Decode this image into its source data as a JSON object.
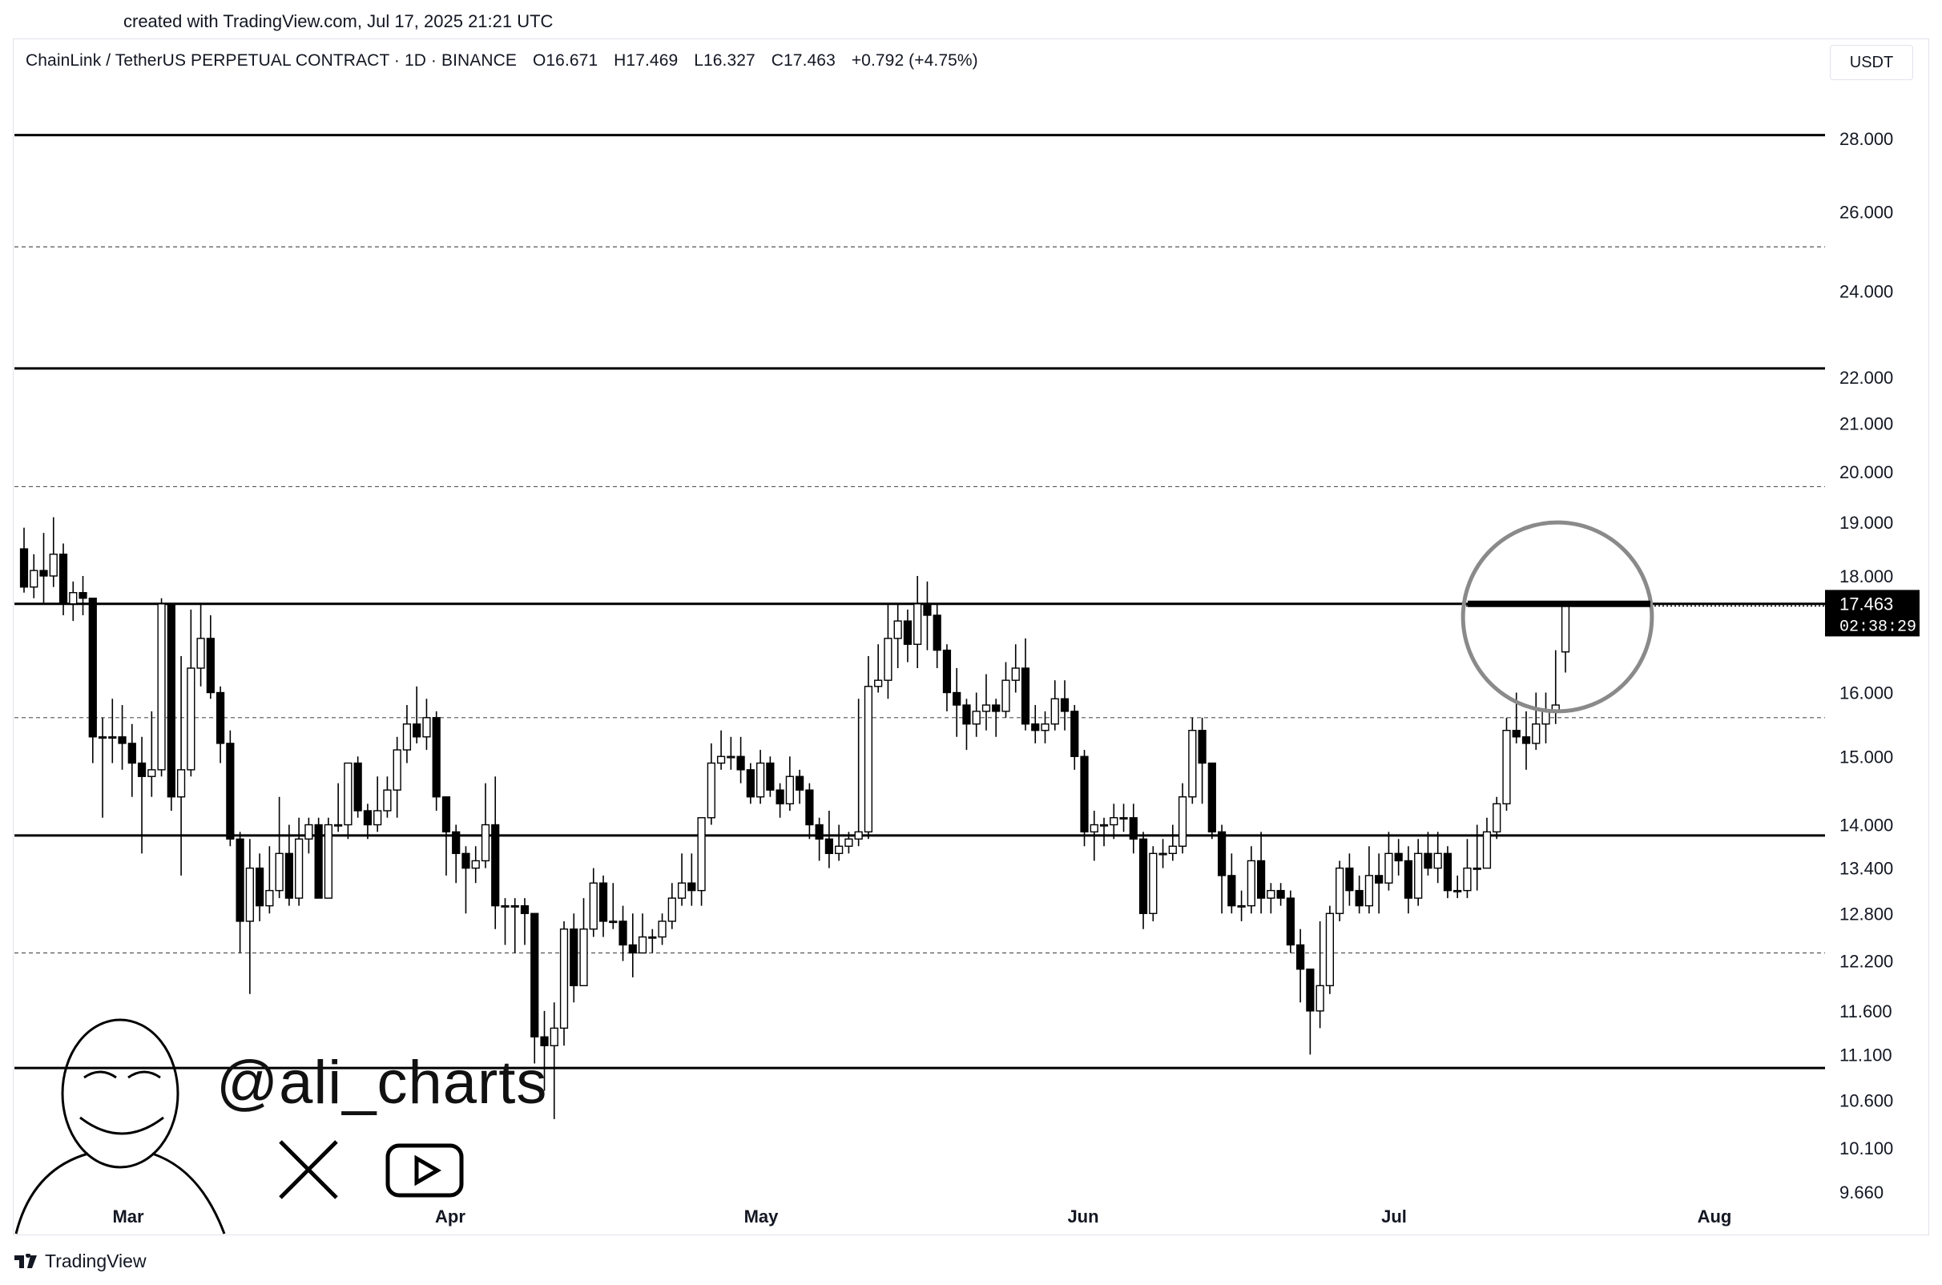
{
  "header": {
    "created": "created with TradingView.com, Jul 17, 2025 21:21 UTC"
  },
  "legend": {
    "symbol": "ChainLink / TetherUS PERPETUAL CONTRACT · 1D · BINANCE",
    "open": "O16.671",
    "high": "H17.469",
    "low": "L16.327",
    "close": "C17.463",
    "change": "+0.792 (+4.75%)"
  },
  "currency_button": "USDT",
  "price_tag": {
    "price": "17.463",
    "countdown": "02:38:29"
  },
  "watermark": {
    "handle": "@ali_charts"
  },
  "footer": {
    "brand": "TradingView"
  },
  "colors": {
    "bull": "#ffffff",
    "bear": "#000000",
    "line": "#000000",
    "circle": "#8a8a8a"
  },
  "chart_data": {
    "type": "candlestick",
    "y_ticks": [
      28.0,
      26.0,
      24.0,
      22.0,
      21.0,
      20.0,
      19.0,
      18.0,
      16.0,
      15.0,
      14.0,
      13.4,
      12.8,
      12.2,
      11.6,
      11.1,
      10.6,
      10.1,
      9.66
    ],
    "y_tick_labels": [
      "28.000",
      "26.000",
      "24.000",
      "22.000",
      "21.000",
      "20.000",
      "19.000",
      "18.000",
      "16.000",
      "15.000",
      "14.000",
      "13.400",
      "12.800",
      "12.200",
      "11.600",
      "11.100",
      "10.600",
      "10.100",
      "9.660"
    ],
    "x_labels": [
      "Mar",
      "Apr",
      "May",
      "Jun",
      "Jul",
      "Aug"
    ],
    "scale": "log",
    "horizontal_lines": [
      {
        "price": 28.1,
        "style": "solid"
      },
      {
        "price": 25.1,
        "style": "dashed"
      },
      {
        "price": 22.2,
        "style": "solid"
      },
      {
        "price": 19.7,
        "style": "dashed"
      },
      {
        "price": 17.5,
        "style": "solid"
      },
      {
        "price": 15.6,
        "style": "dashed"
      },
      {
        "price": 13.85,
        "style": "solid"
      },
      {
        "price": 12.3,
        "style": "dashed"
      },
      {
        "price": 10.95,
        "style": "solid"
      }
    ],
    "highlight": {
      "price_high": 19.0,
      "price_low": 15.7,
      "note": "circle around last candle"
    },
    "candles": [
      [
        18.5,
        17.8,
        18.9,
        17.7
      ],
      [
        17.8,
        18.1,
        18.4,
        17.6
      ],
      [
        18.1,
        18.0,
        18.8,
        17.5
      ],
      [
        18.0,
        18.4,
        19.1,
        17.8
      ],
      [
        18.4,
        17.5,
        18.6,
        17.3
      ],
      [
        17.5,
        17.7,
        17.9,
        17.2
      ],
      [
        17.7,
        17.6,
        18.0,
        17.3
      ],
      [
        17.6,
        15.3,
        17.6,
        14.9
      ],
      [
        15.3,
        15.3,
        15.6,
        14.1
      ],
      [
        15.3,
        15.3,
        15.9,
        14.9
      ],
      [
        15.3,
        15.2,
        15.8,
        14.8
      ],
      [
        15.2,
        14.9,
        15.5,
        14.4
      ],
      [
        14.9,
        14.7,
        15.3,
        13.6
      ],
      [
        14.7,
        14.8,
        15.7,
        14.4
      ],
      [
        14.8,
        17.5,
        17.6,
        14.7
      ],
      [
        17.5,
        14.4,
        17.5,
        14.2
      ],
      [
        14.4,
        14.8,
        16.6,
        13.3
      ],
      [
        14.8,
        16.4,
        17.4,
        14.7
      ],
      [
        16.4,
        16.9,
        17.5,
        16.1
      ],
      [
        16.9,
        16.0,
        17.3,
        15.9
      ],
      [
        16.0,
        15.2,
        16.1,
        14.9
      ],
      [
        15.2,
        13.8,
        15.4,
        13.7
      ],
      [
        13.8,
        12.7,
        13.9,
        12.3
      ],
      [
        12.7,
        13.4,
        13.8,
        11.8
      ],
      [
        13.4,
        12.9,
        13.6,
        12.7
      ],
      [
        12.9,
        13.1,
        13.7,
        12.8
      ],
      [
        13.1,
        13.6,
        14.4,
        13.0
      ],
      [
        13.6,
        13.0,
        14.0,
        12.9
      ],
      [
        13.0,
        13.8,
        14.1,
        12.9
      ],
      [
        13.8,
        14.0,
        14.1,
        13.6
      ],
      [
        14.0,
        13.0,
        14.1,
        13.0
      ],
      [
        13.0,
        14.0,
        14.1,
        13.0
      ],
      [
        14.0,
        14.0,
        14.6,
        13.9
      ],
      [
        14.0,
        14.9,
        14.9,
        13.8
      ],
      [
        14.9,
        14.2,
        15.0,
        14.1
      ],
      [
        14.2,
        14.0,
        14.3,
        13.8
      ],
      [
        14.0,
        14.2,
        14.7,
        13.9
      ],
      [
        14.2,
        14.5,
        14.7,
        14.1
      ],
      [
        14.5,
        15.1,
        15.3,
        14.1
      ],
      [
        15.1,
        15.5,
        15.8,
        14.9
      ],
      [
        15.5,
        15.3,
        16.1,
        15.2
      ],
      [
        15.3,
        15.6,
        15.9,
        15.1
      ],
      [
        15.6,
        14.4,
        15.7,
        14.2
      ],
      [
        14.4,
        13.9,
        14.4,
        13.3
      ],
      [
        13.9,
        13.6,
        14.0,
        13.2
      ],
      [
        13.6,
        13.4,
        13.7,
        12.8
      ],
      [
        13.4,
        13.5,
        13.7,
        13.2
      ],
      [
        13.5,
        14.0,
        14.6,
        13.4
      ],
      [
        14.0,
        12.9,
        14.7,
        12.6
      ],
      [
        12.9,
        12.9,
        13.0,
        12.4
      ],
      [
        12.9,
        12.9,
        13.0,
        12.3
      ],
      [
        12.9,
        12.8,
        13.0,
        12.4
      ],
      [
        12.8,
        11.3,
        12.8,
        11.0
      ],
      [
        11.3,
        11.2,
        11.6,
        10.7
      ],
      [
        11.2,
        11.4,
        11.7,
        10.4
      ],
      [
        11.4,
        12.6,
        12.7,
        11.2
      ],
      [
        12.6,
        11.9,
        12.8,
        11.7
      ],
      [
        11.9,
        12.6,
        13.0,
        11.9
      ],
      [
        12.6,
        13.2,
        13.4,
        12.5
      ],
      [
        13.2,
        12.7,
        13.3,
        12.5
      ],
      [
        12.7,
        12.7,
        13.2,
        12.6
      ],
      [
        12.7,
        12.4,
        12.9,
        12.2
      ],
      [
        12.4,
        12.3,
        12.8,
        12.0
      ],
      [
        12.3,
        12.5,
        12.8,
        12.3
      ],
      [
        12.5,
        12.5,
        12.6,
        12.3
      ],
      [
        12.5,
        12.7,
        12.8,
        12.4
      ],
      [
        12.7,
        13.0,
        13.2,
        12.6
      ],
      [
        13.0,
        13.2,
        13.6,
        12.9
      ],
      [
        13.2,
        13.1,
        13.6,
        12.9
      ],
      [
        13.1,
        14.1,
        14.1,
        12.9
      ],
      [
        14.1,
        14.9,
        15.2,
        14.0
      ],
      [
        14.9,
        15.0,
        15.4,
        14.8
      ],
      [
        15.0,
        15.0,
        15.3,
        14.8
      ],
      [
        15.0,
        14.8,
        15.3,
        14.6
      ],
      [
        14.8,
        14.4,
        14.9,
        14.3
      ],
      [
        14.4,
        14.9,
        15.1,
        14.3
      ],
      [
        14.9,
        14.5,
        15.0,
        14.4
      ],
      [
        14.5,
        14.3,
        14.6,
        14.1
      ],
      [
        14.3,
        14.7,
        15.0,
        14.2
      ],
      [
        14.7,
        14.5,
        14.8,
        14.3
      ],
      [
        14.5,
        14.0,
        14.6,
        13.8
      ],
      [
        14.0,
        13.8,
        14.1,
        13.5
      ],
      [
        13.8,
        13.6,
        14.2,
        13.4
      ],
      [
        13.6,
        13.7,
        14.0,
        13.5
      ],
      [
        13.7,
        13.8,
        13.9,
        13.6
      ],
      [
        13.8,
        13.9,
        15.9,
        13.7
      ],
      [
        13.9,
        16.1,
        16.6,
        13.8
      ],
      [
        16.1,
        16.2,
        16.8,
        16.0
      ],
      [
        16.2,
        16.9,
        17.5,
        15.9
      ],
      [
        16.9,
        17.2,
        17.5,
        16.4
      ],
      [
        17.2,
        16.8,
        17.4,
        16.5
      ],
      [
        16.8,
        17.5,
        18.0,
        16.4
      ],
      [
        17.5,
        17.3,
        17.9,
        16.7
      ],
      [
        17.3,
        16.7,
        17.5,
        16.4
      ],
      [
        16.7,
        16.0,
        16.8,
        15.7
      ],
      [
        16.0,
        15.8,
        16.4,
        15.3
      ],
      [
        15.8,
        15.5,
        15.9,
        15.1
      ],
      [
        15.5,
        15.7,
        16.0,
        15.3
      ],
      [
        15.7,
        15.8,
        16.3,
        15.4
      ],
      [
        15.8,
        15.7,
        15.9,
        15.3
      ],
      [
        15.7,
        16.2,
        16.5,
        15.6
      ],
      [
        16.2,
        16.4,
        16.8,
        16.0
      ],
      [
        16.4,
        15.5,
        16.9,
        15.4
      ],
      [
        15.5,
        15.4,
        15.8,
        15.2
      ],
      [
        15.4,
        15.5,
        15.7,
        15.2
      ],
      [
        15.5,
        15.9,
        16.2,
        15.4
      ],
      [
        15.9,
        15.7,
        16.2,
        15.4
      ],
      [
        15.7,
        15.0,
        15.8,
        14.8
      ],
      [
        15.0,
        13.9,
        15.1,
        13.7
      ],
      [
        13.9,
        14.0,
        14.2,
        13.5
      ],
      [
        14.0,
        14.0,
        14.1,
        13.7
      ],
      [
        14.0,
        14.1,
        14.3,
        13.8
      ],
      [
        14.1,
        14.1,
        14.3,
        13.9
      ],
      [
        14.1,
        13.8,
        14.3,
        13.6
      ],
      [
        13.8,
        12.8,
        13.9,
        12.6
      ],
      [
        12.8,
        13.6,
        13.7,
        12.7
      ],
      [
        13.6,
        13.6,
        13.8,
        13.4
      ],
      [
        13.6,
        13.7,
        14.0,
        13.5
      ],
      [
        13.7,
        14.4,
        14.6,
        13.6
      ],
      [
        14.4,
        15.4,
        15.6,
        14.3
      ],
      [
        15.4,
        14.9,
        15.6,
        14.3
      ],
      [
        14.9,
        13.9,
        14.9,
        13.8
      ],
      [
        13.9,
        13.3,
        14.0,
        12.8
      ],
      [
        13.3,
        12.9,
        13.6,
        12.8
      ],
      [
        12.9,
        12.9,
        13.1,
        12.7
      ],
      [
        12.9,
        13.5,
        13.7,
        12.8
      ],
      [
        13.5,
        13.0,
        13.9,
        12.8
      ],
      [
        13.0,
        13.1,
        13.2,
        12.8
      ],
      [
        13.1,
        13.0,
        13.2,
        12.9
      ],
      [
        13.0,
        12.4,
        13.1,
        12.3
      ],
      [
        12.4,
        12.1,
        12.6,
        11.7
      ],
      [
        12.1,
        11.6,
        12.1,
        11.1
      ],
      [
        11.6,
        11.9,
        12.7,
        11.4
      ],
      [
        11.9,
        12.8,
        12.9,
        11.8
      ],
      [
        12.8,
        13.4,
        13.5,
        12.7
      ],
      [
        13.4,
        13.1,
        13.6,
        12.9
      ],
      [
        13.1,
        12.9,
        13.3,
        12.8
      ],
      [
        12.9,
        13.3,
        13.7,
        12.8
      ],
      [
        13.3,
        13.2,
        13.6,
        12.8
      ],
      [
        13.2,
        13.6,
        13.9,
        13.1
      ],
      [
        13.6,
        13.5,
        13.8,
        13.3
      ],
      [
        13.5,
        13.0,
        13.7,
        12.8
      ],
      [
        13.0,
        13.6,
        13.8,
        12.9
      ],
      [
        13.6,
        13.4,
        13.9,
        13.3
      ],
      [
        13.4,
        13.6,
        13.9,
        13.2
      ],
      [
        13.6,
        13.1,
        13.7,
        13.0
      ],
      [
        13.1,
        13.1,
        13.3,
        13.0
      ],
      [
        13.1,
        13.4,
        13.8,
        13.0
      ],
      [
        13.4,
        13.4,
        14.0,
        13.1
      ],
      [
        13.4,
        13.9,
        14.1,
        13.4
      ],
      [
        13.9,
        14.3,
        14.4,
        13.8
      ],
      [
        14.3,
        15.4,
        15.6,
        14.2
      ],
      [
        15.4,
        15.3,
        16.0,
        15.2
      ],
      [
        15.3,
        15.2,
        15.7,
        14.8
      ],
      [
        15.2,
        15.5,
        16.0,
        15.1
      ],
      [
        15.5,
        15.7,
        16.0,
        15.2
      ],
      [
        15.7,
        15.8,
        16.7,
        15.5
      ],
      [
        16.671,
        17.463,
        17.469,
        16.327
      ]
    ]
  }
}
